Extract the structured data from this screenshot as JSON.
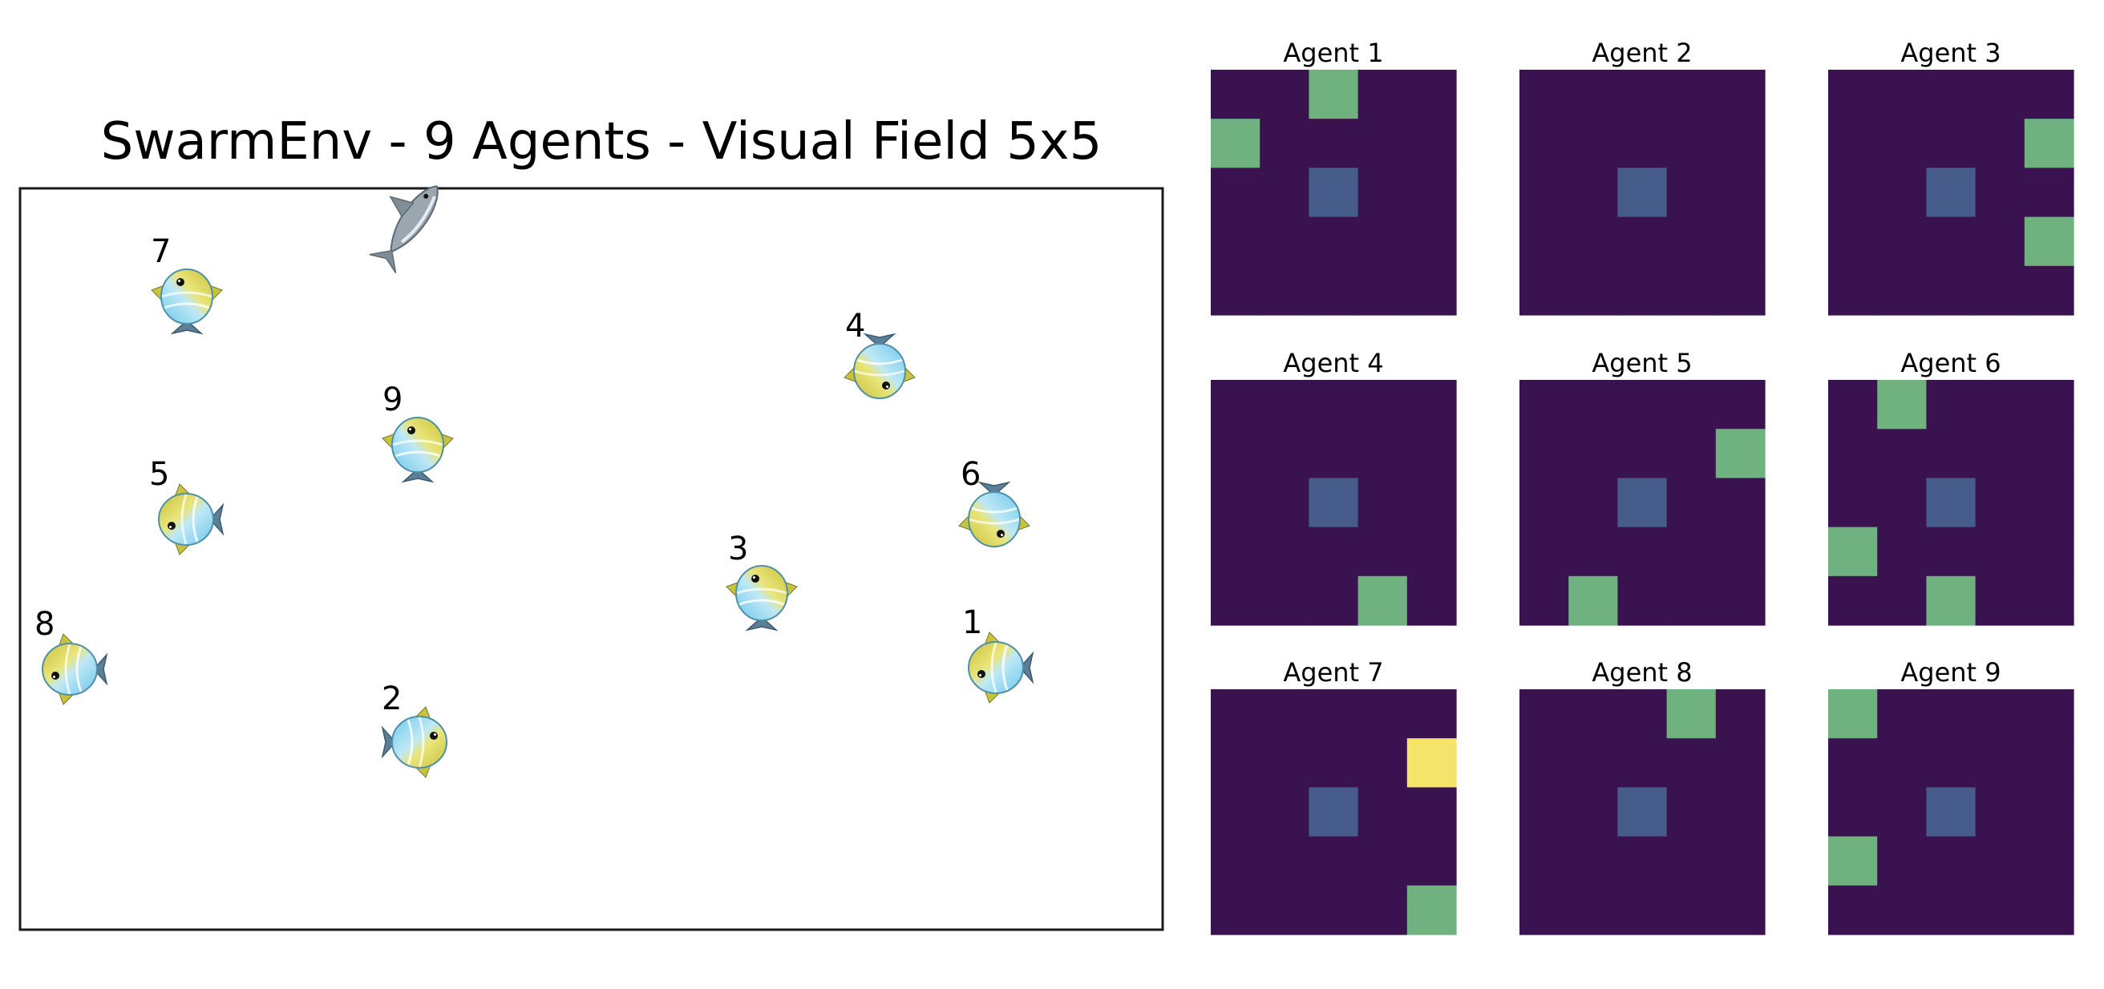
{
  "title": "SwarmEnv - 9 Agents - Visual Field 5x5",
  "colors": {
    "background": "#3b1250",
    "self": "#465d8c",
    "neighbor": "#6fb280",
    "predator": "#f5e46b",
    "fish_body": "#e9e57a",
    "fish_stripe": "#6cc7ec",
    "shark": "#9aa7b0"
  },
  "grid_size": 5,
  "legend_codes": {
    "0": "background",
    "1": "neighbor",
    "2": "self",
    "3": "predator"
  },
  "agents": [
    {
      "id": 1,
      "label": "1",
      "heading": "left"
    },
    {
      "id": 2,
      "label": "2",
      "heading": "right"
    },
    {
      "id": 3,
      "label": "3",
      "heading": "up"
    },
    {
      "id": 4,
      "label": "4",
      "heading": "down"
    },
    {
      "id": 5,
      "label": "5",
      "heading": "left"
    },
    {
      "id": 6,
      "label": "6",
      "heading": "down"
    },
    {
      "id": 7,
      "label": "7",
      "heading": "up"
    },
    {
      "id": 8,
      "label": "8",
      "heading": "left"
    },
    {
      "id": 9,
      "label": "9",
      "heading": "up"
    }
  ],
  "predator": {
    "icon": "shark-icon"
  },
  "panels": [
    {
      "title": "Agent 1",
      "grid": [
        [
          0,
          0,
          1,
          0,
          0
        ],
        [
          1,
          0,
          0,
          0,
          0
        ],
        [
          0,
          0,
          2,
          0,
          0
        ],
        [
          0,
          0,
          0,
          0,
          0
        ],
        [
          0,
          0,
          0,
          0,
          0
        ]
      ]
    },
    {
      "title": "Agent 2",
      "grid": [
        [
          0,
          0,
          0,
          0,
          0
        ],
        [
          0,
          0,
          0,
          0,
          0
        ],
        [
          0,
          0,
          2,
          0,
          0
        ],
        [
          0,
          0,
          0,
          0,
          0
        ],
        [
          0,
          0,
          0,
          0,
          0
        ]
      ]
    },
    {
      "title": "Agent 3",
      "grid": [
        [
          0,
          0,
          0,
          0,
          0
        ],
        [
          0,
          0,
          0,
          0,
          1
        ],
        [
          0,
          0,
          2,
          0,
          0
        ],
        [
          0,
          0,
          0,
          0,
          1
        ],
        [
          0,
          0,
          0,
          0,
          0
        ]
      ]
    },
    {
      "title": "Agent 4",
      "grid": [
        [
          0,
          0,
          0,
          0,
          0
        ],
        [
          0,
          0,
          0,
          0,
          0
        ],
        [
          0,
          0,
          2,
          0,
          0
        ],
        [
          0,
          0,
          0,
          0,
          0
        ],
        [
          0,
          0,
          0,
          1,
          0
        ]
      ]
    },
    {
      "title": "Agent 5",
      "grid": [
        [
          0,
          0,
          0,
          0,
          0
        ],
        [
          0,
          0,
          0,
          0,
          1
        ],
        [
          0,
          0,
          2,
          0,
          0
        ],
        [
          0,
          0,
          0,
          0,
          0
        ],
        [
          0,
          1,
          0,
          0,
          0
        ]
      ]
    },
    {
      "title": "Agent 6",
      "grid": [
        [
          0,
          1,
          0,
          0,
          0
        ],
        [
          0,
          0,
          0,
          0,
          0
        ],
        [
          0,
          0,
          2,
          0,
          0
        ],
        [
          1,
          0,
          0,
          0,
          0
        ],
        [
          0,
          0,
          1,
          0,
          0
        ]
      ]
    },
    {
      "title": "Agent 7",
      "grid": [
        [
          0,
          0,
          0,
          0,
          0
        ],
        [
          0,
          0,
          0,
          0,
          3
        ],
        [
          0,
          0,
          2,
          0,
          0
        ],
        [
          0,
          0,
          0,
          0,
          0
        ],
        [
          0,
          0,
          0,
          0,
          1
        ]
      ]
    },
    {
      "title": "Agent 8",
      "grid": [
        [
          0,
          0,
          0,
          1,
          0
        ],
        [
          0,
          0,
          0,
          0,
          0
        ],
        [
          0,
          0,
          2,
          0,
          0
        ],
        [
          0,
          0,
          0,
          0,
          0
        ],
        [
          0,
          0,
          0,
          0,
          0
        ]
      ]
    },
    {
      "title": "Agent 9",
      "grid": [
        [
          1,
          0,
          0,
          0,
          0
        ],
        [
          0,
          0,
          0,
          0,
          0
        ],
        [
          0,
          0,
          2,
          0,
          0
        ],
        [
          1,
          0,
          0,
          0,
          0
        ],
        [
          0,
          0,
          0,
          0,
          0
        ]
      ]
    }
  ]
}
